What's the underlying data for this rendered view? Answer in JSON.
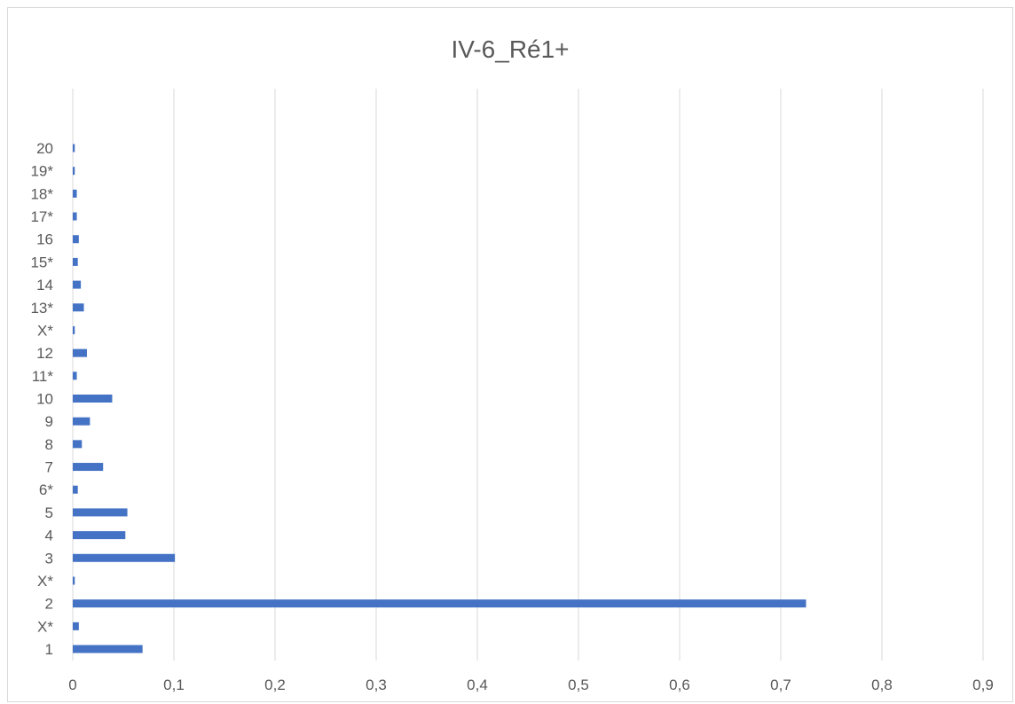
{
  "chart_data": {
    "type": "bar",
    "orientation": "horizontal",
    "title": "IV-6_Ré1+",
    "xlabel": "",
    "ylabel": "",
    "categories": [
      "1",
      "X*",
      "2",
      "X*",
      "3",
      "4",
      "5",
      "6*",
      "7",
      "8",
      "9",
      "10",
      "11*",
      "12",
      "X*",
      "13*",
      "14",
      "15*",
      "16",
      "17*",
      "18*",
      "19*",
      "20"
    ],
    "values": [
      0.069,
      0.006,
      0.725,
      0.002,
      0.101,
      0.052,
      0.054,
      0.005,
      0.03,
      0.009,
      0.017,
      0.039,
      0.004,
      0.014,
      0.002,
      0.011,
      0.008,
      0.005,
      0.006,
      0.004,
      0.004,
      0.002,
      0.002
    ],
    "xlim": [
      0,
      0.9
    ],
    "xticks": [
      0,
      0.1,
      0.2,
      0.3,
      0.4,
      0.5,
      0.6,
      0.7,
      0.8,
      0.9
    ],
    "xtick_labels": [
      "0",
      "0,1",
      "0,2",
      "0,3",
      "0,4",
      "0,5",
      "0,6",
      "0,7",
      "0,8",
      "0,9"
    ],
    "grid": "vertical",
    "legend": "none",
    "bar_color": "#4472c4",
    "gridline_color": "#d9d9d9"
  }
}
